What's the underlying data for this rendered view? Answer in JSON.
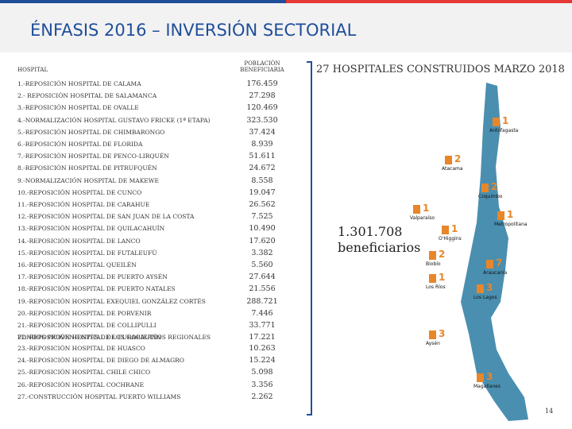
{
  "header": {
    "title": "ÉNFASIS 2016 – INVERSIÓN SECTORIAL"
  },
  "table": {
    "columns": [
      "HOSPITAL",
      "POBLACIÓN BENEFICIARIA"
    ],
    "rows": [
      [
        "1.-REPOSICIÓN HOSPITAL DE CALAMA",
        "176.459"
      ],
      [
        "2.- REPOSICIÓN HOSPITAL DE SALAMANCA",
        "27.298"
      ],
      [
        "3.-REPOSICIÓN HOSPITAL DE OVALLE",
        "120.469"
      ],
      [
        "4.-NORMALIZACIÓN HOSPITAL GUSTAVO FRICKE (1ª ETAPA)",
        "323.530"
      ],
      [
        "5.-REPOSICIÓN HOSPITAL DE CHIMBARONGO",
        "37.424"
      ],
      [
        "6.-REPOSICIÓN HOSPITAL DE FLORIDA",
        "8.939"
      ],
      [
        "7.-REPOSICIÓN HOSPITAL DE PENCO-LIRQUÉN",
        "51.611"
      ],
      [
        "8.-REPOSICIÓN HOSPITAL DE PITRUFQUÉN",
        "24.672"
      ],
      [
        "9.-NORMALIZACIÓN HOSPITAL DE MAKEWE",
        "8.558"
      ],
      [
        "10.-REPOSICIÓN HOSPITAL DE CUNCO",
        "19.047"
      ],
      [
        "11.-REPOSICIÓN HOSPITAL DE CARAHUE",
        "26.562"
      ],
      [
        "12.-REPOSICIÓN HOSPITAL DE SAN JUAN DE LA COSTA",
        "7.525"
      ],
      [
        "13.-REPOSICIÓN HOSPITAL DE QUILACAHUÍN",
        "10.490"
      ],
      [
        "14.-REPOSICIÓN HOSPITAL DE LANCO",
        "17.620"
      ],
      [
        "15.-REPOSICIÓN HOSPITAL DE FUTALEUFÚ",
        "3.382"
      ],
      [
        "16.-REPOSICIÓN HOSPITAL QUEILÉN",
        "5.560"
      ],
      [
        "17.-REPOSICIÓN HOSPITAL DE PUERTO AYSÉN",
        "27.644"
      ],
      [
        "18.-REPOSICIÓN HOSPITAL DE PUERTO NATALES",
        "21.556"
      ],
      [
        "19.-REPOSICIÓN HOSPITAL EXEQUIEL GONZÁLEZ CORTÉS",
        "288.721"
      ],
      [
        "20.-REPOSICIÓN HOSPITAL DE PORVENIR",
        "7.446"
      ],
      [
        "21.-REPOSICIÓN HOSPITAL DE COLLIPULLI",
        "33.771"
      ],
      [
        "22.-REPOSICIÓN HOSPITAL DE CURACAUTÍN",
        "17.221"
      ]
    ],
    "section": "FONDOS PROVENIENTES DE LOS GOBIERNOS REGIONALES",
    "section_rows": [
      [
        "23.-REPOSICIÓN HOSPITAL DE HUASCO",
        "10.263"
      ],
      [
        "24.-REPOSICIÓN HOSPITAL DE DIEGO DE ALMAGRO",
        "15.224"
      ],
      [
        "25.-REPOSICIÓN HOSPITAL CHILE CHICO",
        "5.098"
      ],
      [
        "26.-REPOSICIÓN HOSPITAL COCHRANE",
        "3.356"
      ],
      [
        "27.-CONSTRUCCIÓN HOSPITAL PUERTO WILLIAMS",
        "2.262"
      ]
    ]
  },
  "summary": {
    "title": "27 HOSPITALES CONSTRUIDOS MARZO 2018",
    "total": "1.301.708",
    "total_label": "beneficiarios"
  },
  "map": {
    "regions": [
      {
        "name": "Antofagasta",
        "count": "1"
      },
      {
        "name": "Atacama",
        "count": "2"
      },
      {
        "name": "Coquimbo",
        "count": "2"
      },
      {
        "name": "Valparaíso",
        "count": "1"
      },
      {
        "name": "Metropolitana",
        "count": "1"
      },
      {
        "name": "O'Higgins",
        "count": "1"
      },
      {
        "name": "Biobío",
        "count": "2"
      },
      {
        "name": "Araucanía",
        "count": "7"
      },
      {
        "name": "Los Ríos",
        "count": "1"
      },
      {
        "name": "Los Lagos",
        "count": "3"
      },
      {
        "name": "Aysén",
        "count": "3"
      },
      {
        "name": "Magallanes",
        "count": "3"
      }
    ]
  },
  "footer": {
    "page": "14"
  }
}
